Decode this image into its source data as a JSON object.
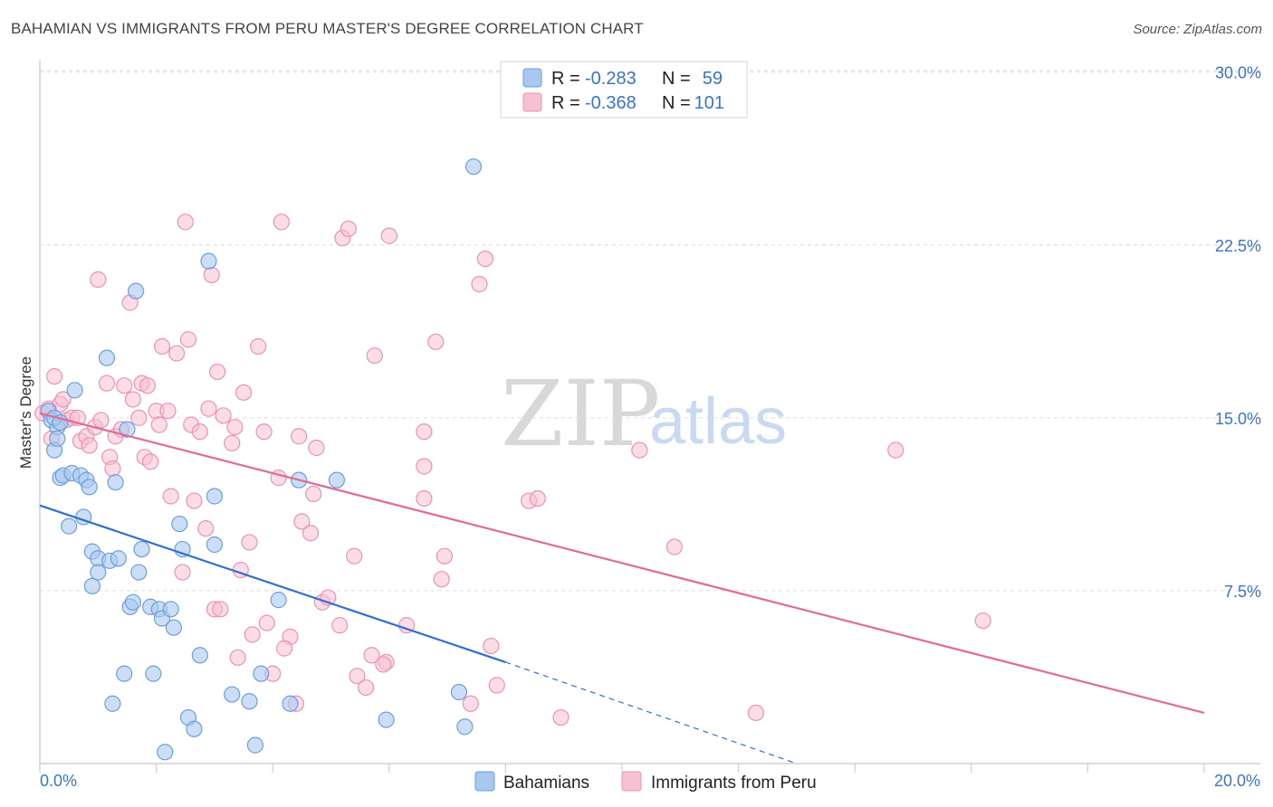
{
  "title": "BAHAMIAN VS IMMIGRANTS FROM PERU MASTER'S DEGREE CORRELATION CHART",
  "source": "Source: ZipAtlas.com",
  "watermark": {
    "zip": "ZIP",
    "atlas": "atlas"
  },
  "colors": {
    "blue_fill": "#a9c8ef",
    "blue_stroke": "#6d9ee0",
    "blue_line": "#2f6fd0",
    "pink_fill": "#f7c0d3",
    "pink_stroke": "#ec93b2",
    "pink_line": "#e26a95",
    "grid": "#dcdcdc",
    "axis_text": "#3b73c8"
  },
  "legend": {
    "rows": [
      {
        "r_label": "R =",
        "r_value": "-0.283",
        "n_label": "N =",
        "n_value": "59"
      },
      {
        "r_label": "R =",
        "r_value": "-0.368",
        "n_label": "N =",
        "n_value": "101"
      }
    ]
  },
  "bottom_legend": [
    "Bahamians",
    "Immigrants from Peru"
  ],
  "chart_data": {
    "type": "scatter",
    "title": "BAHAMIAN VS IMMIGRANTS FROM PERU MASTER'S DEGREE CORRELATION CHART",
    "xlabel": "",
    "ylabel": "Master's Degree",
    "xlim": [
      0,
      20
    ],
    "ylim": [
      0,
      30.5
    ],
    "x_tick_labels": [
      "0.0%",
      "20.0%"
    ],
    "y_ticks": [
      7.5,
      15.0,
      22.5,
      30.0
    ],
    "y_tick_labels": [
      "7.5%",
      "15.0%",
      "22.5%",
      "30.0%"
    ],
    "series": [
      {
        "name": "Bahamians",
        "r": -0.283,
        "n": 59,
        "trend": {
          "x0": 0,
          "y0": 11.2,
          "x1": 8.0,
          "y1": 4.4,
          "dash_to_x": 13.0,
          "dash_to_y": 0.0
        },
        "points": [
          [
            0.15,
            15.3
          ],
          [
            0.2,
            14.9
          ],
          [
            0.25,
            13.6
          ],
          [
            0.3,
            14.6
          ],
          [
            0.3,
            14.1
          ],
          [
            0.35,
            12.4
          ],
          [
            0.4,
            12.5
          ],
          [
            0.5,
            10.3
          ],
          [
            0.55,
            12.6
          ],
          [
            0.6,
            16.2
          ],
          [
            0.7,
            12.5
          ],
          [
            0.75,
            10.7
          ],
          [
            0.8,
            12.3
          ],
          [
            0.85,
            12.0
          ],
          [
            0.9,
            9.2
          ],
          [
            0.9,
            7.7
          ],
          [
            1.0,
            8.9
          ],
          [
            1.0,
            8.3
          ],
          [
            1.15,
            17.6
          ],
          [
            1.2,
            8.8
          ],
          [
            1.25,
            2.6
          ],
          [
            1.3,
            12.2
          ],
          [
            1.35,
            8.9
          ],
          [
            1.5,
            14.5
          ],
          [
            1.45,
            3.9
          ],
          [
            1.55,
            6.8
          ],
          [
            1.6,
            7.0
          ],
          [
            1.65,
            20.5
          ],
          [
            1.7,
            8.3
          ],
          [
            1.75,
            9.3
          ],
          [
            1.9,
            6.8
          ],
          [
            1.95,
            3.9
          ],
          [
            2.05,
            6.7
          ],
          [
            2.1,
            6.3
          ],
          [
            2.15,
            0.5
          ],
          [
            2.25,
            6.7
          ],
          [
            2.3,
            5.9
          ],
          [
            2.4,
            10.4
          ],
          [
            2.45,
            9.3
          ],
          [
            2.55,
            2.0
          ],
          [
            2.65,
            1.5
          ],
          [
            2.75,
            4.7
          ],
          [
            2.9,
            21.8
          ],
          [
            3.0,
            11.6
          ],
          [
            3.0,
            9.5
          ],
          [
            3.3,
            3.0
          ],
          [
            3.6,
            2.7
          ],
          [
            3.7,
            0.8
          ],
          [
            3.8,
            3.9
          ],
          [
            4.1,
            7.1
          ],
          [
            4.3,
            2.6
          ],
          [
            4.45,
            12.3
          ],
          [
            5.1,
            12.3
          ],
          [
            5.95,
            1.9
          ],
          [
            7.2,
            3.1
          ],
          [
            7.3,
            1.6
          ],
          [
            7.45,
            25.9
          ],
          [
            0.25,
            15.0
          ],
          [
            0.35,
            14.8
          ]
        ]
      },
      {
        "name": "Immigrants from Peru",
        "r": -0.368,
        "n": 101,
        "trend": {
          "x0": 0,
          "y0": 15.2,
          "x1": 20,
          "y1": 2.2
        },
        "points": [
          [
            0.05,
            15.2
          ],
          [
            0.15,
            15.4
          ],
          [
            0.25,
            16.8
          ],
          [
            0.35,
            15.6
          ],
          [
            0.4,
            15.8
          ],
          [
            0.45,
            14.9
          ],
          [
            0.55,
            15.0
          ],
          [
            0.65,
            15.0
          ],
          [
            0.7,
            14.0
          ],
          [
            0.8,
            14.2
          ],
          [
            0.85,
            13.8
          ],
          [
            0.95,
            14.6
          ],
          [
            1.0,
            21.0
          ],
          [
            1.05,
            14.9
          ],
          [
            1.15,
            16.5
          ],
          [
            1.2,
            13.3
          ],
          [
            1.25,
            12.8
          ],
          [
            1.3,
            14.2
          ],
          [
            1.4,
            14.5
          ],
          [
            1.45,
            16.4
          ],
          [
            1.55,
            20.0
          ],
          [
            1.6,
            15.8
          ],
          [
            1.7,
            15.0
          ],
          [
            1.75,
            16.5
          ],
          [
            1.8,
            13.3
          ],
          [
            1.85,
            16.4
          ],
          [
            1.9,
            13.1
          ],
          [
            2.0,
            15.3
          ],
          [
            2.05,
            14.7
          ],
          [
            2.1,
            18.1
          ],
          [
            2.2,
            15.3
          ],
          [
            2.25,
            11.6
          ],
          [
            2.35,
            17.8
          ],
          [
            2.45,
            8.3
          ],
          [
            2.5,
            23.5
          ],
          [
            2.55,
            18.4
          ],
          [
            2.6,
            14.7
          ],
          [
            2.65,
            11.4
          ],
          [
            2.75,
            14.4
          ],
          [
            2.85,
            10.2
          ],
          [
            2.9,
            15.4
          ],
          [
            2.95,
            21.2
          ],
          [
            3.0,
            6.7
          ],
          [
            3.05,
            17.0
          ],
          [
            3.15,
            15.1
          ],
          [
            3.3,
            13.9
          ],
          [
            3.35,
            14.6
          ],
          [
            3.4,
            4.6
          ],
          [
            3.45,
            8.4
          ],
          [
            3.5,
            16.1
          ],
          [
            3.6,
            9.6
          ],
          [
            3.65,
            5.6
          ],
          [
            3.75,
            18.1
          ],
          [
            3.85,
            14.4
          ],
          [
            3.9,
            6.1
          ],
          [
            4.0,
            3.9
          ],
          [
            4.1,
            12.4
          ],
          [
            4.15,
            23.5
          ],
          [
            4.3,
            5.5
          ],
          [
            4.4,
            2.6
          ],
          [
            4.45,
            14.2
          ],
          [
            4.5,
            10.5
          ],
          [
            4.65,
            10.0
          ],
          [
            4.7,
            11.7
          ],
          [
            4.75,
            13.7
          ],
          [
            4.85,
            7.0
          ],
          [
            4.95,
            7.2
          ],
          [
            5.15,
            6.0
          ],
          [
            5.2,
            22.8
          ],
          [
            5.3,
            23.2
          ],
          [
            5.4,
            9.0
          ],
          [
            5.45,
            3.8
          ],
          [
            5.6,
            3.3
          ],
          [
            5.7,
            4.7
          ],
          [
            5.75,
            17.7
          ],
          [
            5.95,
            4.4
          ],
          [
            6.0,
            22.9
          ],
          [
            6.3,
            6.0
          ],
          [
            6.6,
            12.9
          ],
          [
            6.6,
            11.5
          ],
          [
            6.8,
            18.3
          ],
          [
            6.9,
            8.0
          ],
          [
            6.95,
            9.0
          ],
          [
            7.4,
            2.6
          ],
          [
            7.55,
            20.8
          ],
          [
            7.65,
            21.9
          ],
          [
            7.75,
            5.1
          ],
          [
            7.85,
            3.4
          ],
          [
            8.4,
            11.4
          ],
          [
            8.55,
            11.5
          ],
          [
            8.95,
            2.0
          ],
          [
            10.3,
            13.6
          ],
          [
            10.9,
            9.4
          ],
          [
            12.3,
            2.2
          ],
          [
            14.7,
            13.6
          ],
          [
            16.2,
            6.2
          ],
          [
            3.1,
            6.7
          ],
          [
            4.2,
            5.0
          ],
          [
            5.9,
            4.3
          ],
          [
            6.6,
            14.4
          ],
          [
            0.2,
            14.1
          ]
        ]
      }
    ]
  }
}
